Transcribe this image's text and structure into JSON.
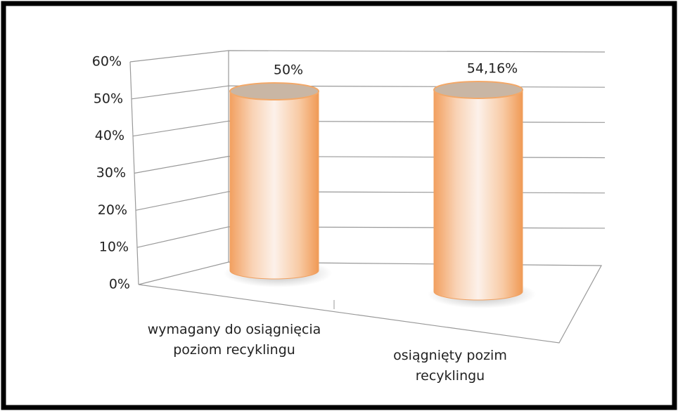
{
  "chart_data": {
    "type": "cylinder",
    "categories": [
      "wymagany do osiągnięcia poziom recyklingu",
      "osiągnięty pozim recyklingu"
    ],
    "values": [
      50,
      54.16
    ],
    "value_labels": [
      "50%",
      "54,16%"
    ],
    "color": "#f4a460",
    "ylim": [
      0,
      60
    ],
    "yticks": [
      {
        "value": 0,
        "label": "0%"
      },
      {
        "value": 10,
        "label": "10%"
      },
      {
        "value": 20,
        "label": "20%"
      },
      {
        "value": 30,
        "label": "30%"
      },
      {
        "value": 40,
        "label": "40%"
      },
      {
        "value": 50,
        "label": "50%"
      },
      {
        "value": 60,
        "label": "60%"
      }
    ],
    "grid": true
  }
}
